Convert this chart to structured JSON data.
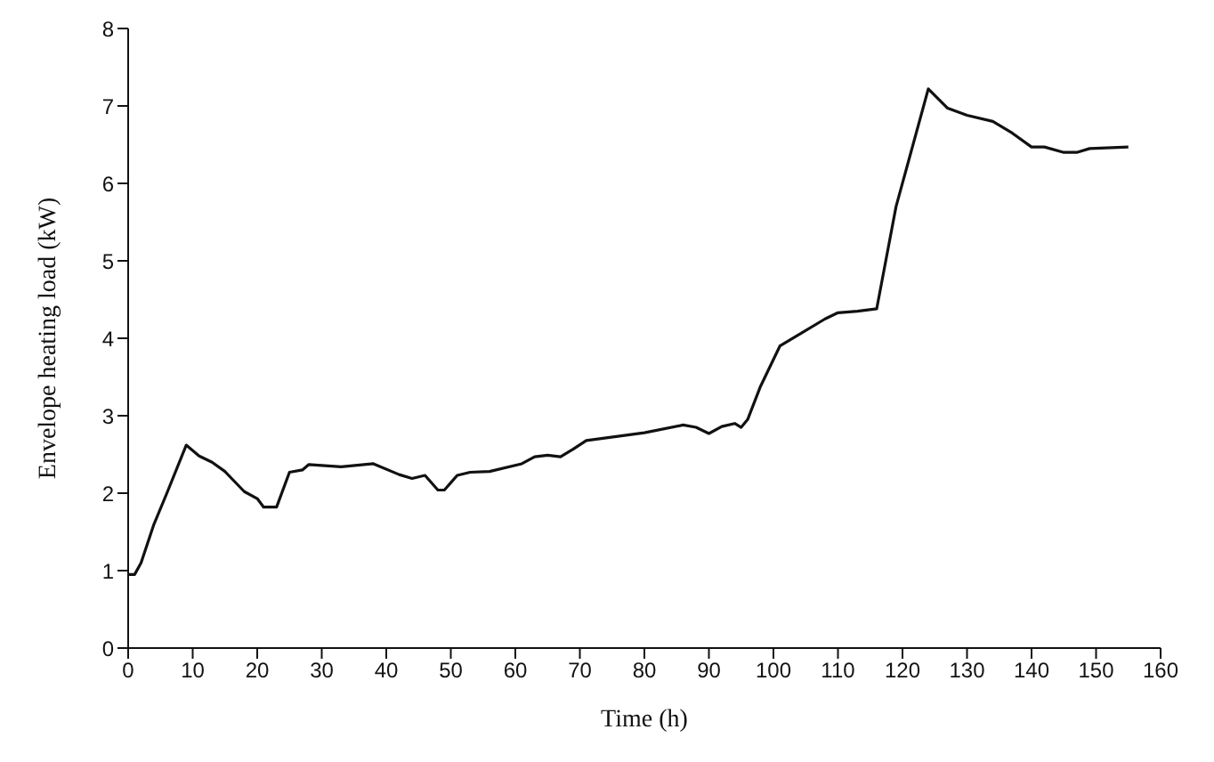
{
  "chart_data": {
    "type": "line",
    "xlabel": "Time (h)",
    "ylabel": "Envelope heating load (kW)",
    "x": [
      0,
      1,
      2,
      4,
      6,
      9,
      11,
      13,
      15,
      18,
      20,
      21,
      23,
      25,
      27,
      28,
      33,
      38,
      42,
      44,
      46,
      48,
      49,
      51,
      53,
      56,
      61,
      63,
      65,
      67,
      69,
      71,
      80,
      86,
      88,
      90,
      92,
      94,
      95,
      96,
      98,
      101,
      104,
      108,
      110,
      113,
      116,
      119,
      124,
      127,
      130,
      134,
      137,
      140,
      142,
      145,
      147,
      149,
      155
    ],
    "series": [
      {
        "color": "#111111",
        "values": [
          0.95,
          0.95,
          1.1,
          1.6,
          2.0,
          2.62,
          2.48,
          2.4,
          2.28,
          2.02,
          1.93,
          1.82,
          1.82,
          2.27,
          2.3,
          2.37,
          2.34,
          2.38,
          2.24,
          2.19,
          2.23,
          2.04,
          2.04,
          2.23,
          2.27,
          2.28,
          2.38,
          2.47,
          2.49,
          2.47,
          2.57,
          2.68,
          2.78,
          2.88,
          2.85,
          2.77,
          2.86,
          2.9,
          2.85,
          2.95,
          3.38,
          3.9,
          4.05,
          4.25,
          4.33,
          4.35,
          4.38,
          5.7,
          7.22,
          6.97,
          6.88,
          6.8,
          6.65,
          6.47,
          6.47,
          6.4,
          6.4,
          6.45,
          6.47
        ]
      }
    ],
    "xlim": [
      0,
      160
    ],
    "xticks": [
      0,
      10,
      20,
      30,
      40,
      50,
      60,
      70,
      80,
      90,
      100,
      110,
      120,
      130,
      140,
      150,
      160
    ],
    "ylim": [
      0,
      8
    ],
    "yticks": [
      0,
      1,
      2,
      3,
      4,
      5,
      6,
      7,
      8
    ],
    "grid": false,
    "legend": false,
    "marker": "none",
    "line_style": "solid"
  }
}
